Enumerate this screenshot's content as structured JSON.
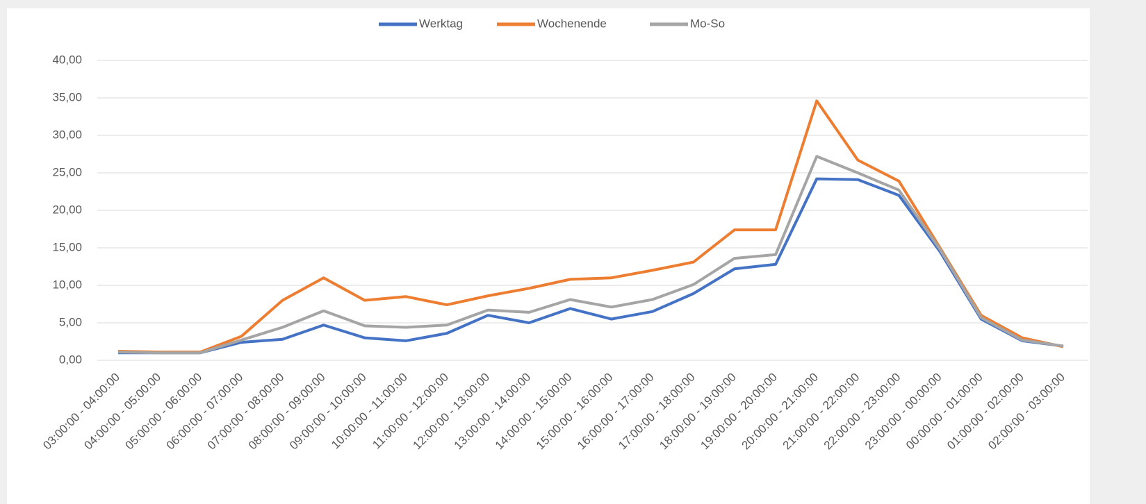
{
  "chart_data": {
    "type": "line",
    "categories": [
      "03:00:00 - 04:00:00",
      "04:00:00 - 05:00:00",
      "05:00:00 - 06:00:00",
      "06:00:00 - 07:00:00",
      "07:00:00 - 08:00:00",
      "08:00:00 - 09:00:00",
      "09:00:00 - 10:00:00",
      "10:00:00 - 11:00:00",
      "11:00:00 - 12:00:00",
      "12:00:00 - 13:00:00",
      "13:00:00 - 14:00:00",
      "14:00:00 - 15:00:00",
      "15:00:00 - 16:00:00",
      "16:00:00 - 17:00:00",
      "17:00:00 - 18:00:00",
      "18:00:00 - 19:00:00",
      "19:00:00 - 20:00:00",
      "20:00:00 - 21:00:00",
      "21:00:00 - 22:00:00",
      "22:00:00 - 23:00:00",
      "23:00:00 - 00:00:00",
      "00:00:00 - 01:00:00",
      "01:00:00 - 02:00:00",
      "02:00:00 - 03:00:00"
    ],
    "series": [
      {
        "name": "Werktag",
        "color": "#4472c4",
        "values": [
          1.0,
          1.0,
          1.0,
          2.4,
          2.8,
          4.7,
          3.0,
          2.6,
          3.6,
          6.0,
          5.0,
          6.9,
          5.5,
          6.5,
          8.9,
          12.2,
          12.8,
          24.2,
          24.1,
          22.0,
          14.5,
          5.5,
          2.6,
          1.9
        ]
      },
      {
        "name": "Wochenende",
        "color": "#ed7d31",
        "values": [
          1.2,
          1.1,
          1.1,
          3.2,
          8.0,
          11.0,
          8.0,
          8.5,
          7.4,
          8.6,
          9.6,
          10.8,
          11.0,
          12.0,
          13.1,
          17.4,
          17.4,
          34.6,
          26.7,
          23.9,
          15.0,
          6.0,
          3.0,
          1.8
        ]
      },
      {
        "name": "Mo-So",
        "color": "#a5a5a5",
        "values": [
          1.1,
          1.0,
          1.0,
          2.7,
          4.4,
          6.6,
          4.6,
          4.4,
          4.7,
          6.7,
          6.4,
          8.1,
          7.1,
          8.1,
          10.1,
          13.6,
          14.1,
          27.2,
          25.0,
          22.7,
          14.8,
          5.7,
          2.7,
          1.9
        ]
      }
    ],
    "ylim": [
      0,
      40
    ],
    "yticks": [
      {
        "value": 0,
        "label": "0,00"
      },
      {
        "value": 5,
        "label": "5,00"
      },
      {
        "value": 10,
        "label": "10,00"
      },
      {
        "value": 15,
        "label": "15,00"
      },
      {
        "value": 20,
        "label": "20,00"
      },
      {
        "value": 25,
        "label": "25,00"
      },
      {
        "value": 30,
        "label": "30,00"
      },
      {
        "value": 35,
        "label": "35,00"
      },
      {
        "value": 40,
        "label": "40,00"
      }
    ],
    "grid": true,
    "legend": "top"
  }
}
